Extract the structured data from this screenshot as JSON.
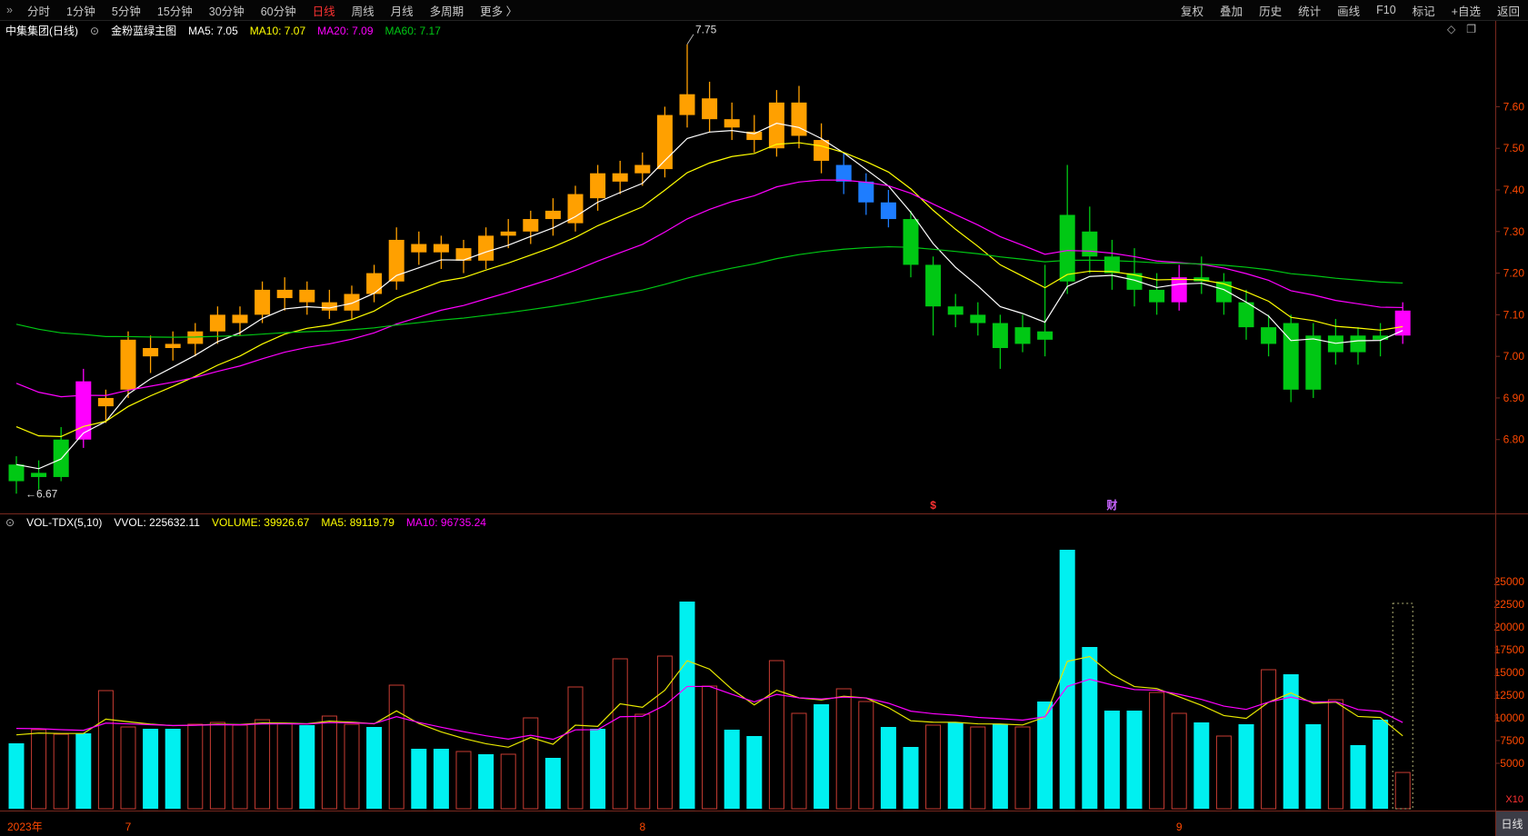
{
  "topbar": {
    "menu_icon": "»",
    "left_items": [
      {
        "label": "分时",
        "active": false
      },
      {
        "label": "1分钟",
        "active": false
      },
      {
        "label": "5分钟",
        "active": false
      },
      {
        "label": "15分钟",
        "active": false
      },
      {
        "label": "30分钟",
        "active": false
      },
      {
        "label": "60分钟",
        "active": false
      },
      {
        "label": "日线",
        "active": true
      },
      {
        "label": "周线",
        "active": false
      },
      {
        "label": "月线",
        "active": false
      },
      {
        "label": "多周期",
        "active": false
      },
      {
        "label": "更多 〉",
        "active": false
      }
    ],
    "right_items": [
      "复权",
      "叠加",
      "历史",
      "统计",
      "画线",
      "F10",
      "标记",
      "+自选",
      "返回"
    ]
  },
  "main_pane": {
    "symbol": "中集集团(日线)",
    "indicator_toggle_icon": "⊙",
    "indicator_name": "金粉蓝绿主图",
    "ma_labels": [
      {
        "text": "MA5: 7.05",
        "color": "#ffffff"
      },
      {
        "text": "MA10: 7.07",
        "color": "#ffff00"
      },
      {
        "text": "MA20: 7.09",
        "color": "#ff00ff"
      },
      {
        "text": "MA60: 7.17",
        "color": "#00c814"
      }
    ],
    "corner_icons": [
      "◇",
      "❐"
    ],
    "event_markers": [
      {
        "label": "$",
        "color": "#ff3232",
        "index": 41
      },
      {
        "label": "财",
        "color": "#c864ff",
        "index": 49
      }
    ]
  },
  "vol_pane": {
    "toggle_icon": "⊙",
    "title": "VOL-TDX(5,10)",
    "vvol": "VVOL: 225632.11",
    "volume": "VOLUME: 39926.67",
    "ma5": "MA5: 89119.79",
    "ma10": "MA10: 96735.24"
  },
  "axes": {
    "price_labels": [
      "7.60",
      "7.50",
      "7.40",
      "7.30",
      "7.20",
      "7.10",
      "7.00",
      "6.90",
      "6.80"
    ],
    "volume_labels": [
      "25000",
      "22500",
      "20000",
      "17500",
      "15000",
      "12500",
      "10000",
      "7500",
      "5000"
    ],
    "volume_unit": "X10",
    "date_labels": [
      {
        "label": "2023年",
        "index": 0
      },
      {
        "label": "7",
        "index": 5
      },
      {
        "label": "8",
        "index": 28
      },
      {
        "label": "9",
        "index": 52
      }
    ],
    "period_label": "日线"
  },
  "palette": {
    "background": "#000000",
    "gold": "#ffa000",
    "pink": "#ff00ff",
    "blue": "#1e7dff",
    "green": "#00c814",
    "vol_down_solid": "#00f0f0",
    "vol_up_hollow": "#c83c32",
    "axis_text": "#ff4800",
    "frame": "#78281e",
    "active_tab": "#ff3232"
  },
  "chart_data": {
    "type": "candlestick",
    "title": "中集集团 日线",
    "price_range": {
      "min": 6.64,
      "max": 7.78
    },
    "volume_axis_max": 30000,
    "volume_unit_multiplier": "X10",
    "high_label": {
      "value": 7.75,
      "candle_index": 30
    },
    "low_label": {
      "value": 6.67,
      "candle_index": 0
    },
    "candles": [
      [
        6.74,
        6.76,
        6.67,
        6.7,
        "green"
      ],
      [
        6.72,
        6.75,
        6.68,
        6.71,
        "green"
      ],
      [
        6.71,
        6.83,
        6.7,
        6.8,
        "green"
      ],
      [
        6.8,
        6.97,
        6.78,
        6.94,
        "pink"
      ],
      [
        6.88,
        6.92,
        6.84,
        6.9,
        "gold"
      ],
      [
        6.92,
        7.06,
        6.9,
        7.04,
        "gold"
      ],
      [
        7.0,
        7.05,
        6.96,
        7.02,
        "gold"
      ],
      [
        7.02,
        7.06,
        6.99,
        7.03,
        "gold"
      ],
      [
        7.03,
        7.08,
        7.0,
        7.06,
        "gold"
      ],
      [
        7.06,
        7.12,
        7.03,
        7.1,
        "gold"
      ],
      [
        7.08,
        7.12,
        7.05,
        7.1,
        "gold"
      ],
      [
        7.1,
        7.18,
        7.08,
        7.16,
        "gold"
      ],
      [
        7.14,
        7.19,
        7.11,
        7.16,
        "gold"
      ],
      [
        7.16,
        7.18,
        7.1,
        7.13,
        "gold"
      ],
      [
        7.13,
        7.16,
        7.09,
        7.11,
        "gold"
      ],
      [
        7.11,
        7.17,
        7.09,
        7.15,
        "gold"
      ],
      [
        7.15,
        7.22,
        7.13,
        7.2,
        "gold"
      ],
      [
        7.18,
        7.31,
        7.16,
        7.28,
        "gold"
      ],
      [
        7.27,
        7.3,
        7.22,
        7.25,
        "gold"
      ],
      [
        7.25,
        7.29,
        7.21,
        7.27,
        "gold"
      ],
      [
        7.26,
        7.28,
        7.2,
        7.23,
        "gold"
      ],
      [
        7.23,
        7.31,
        7.21,
        7.29,
        "gold"
      ],
      [
        7.29,
        7.33,
        7.26,
        7.3,
        "gold"
      ],
      [
        7.3,
        7.35,
        7.27,
        7.33,
        "gold"
      ],
      [
        7.33,
        7.38,
        7.29,
        7.35,
        "gold"
      ],
      [
        7.32,
        7.41,
        7.3,
        7.39,
        "gold"
      ],
      [
        7.38,
        7.46,
        7.35,
        7.44,
        "gold"
      ],
      [
        7.42,
        7.47,
        7.39,
        7.44,
        "gold"
      ],
      [
        7.44,
        7.49,
        7.41,
        7.46,
        "gold"
      ],
      [
        7.45,
        7.6,
        7.43,
        7.58,
        "gold"
      ],
      [
        7.58,
        7.75,
        7.55,
        7.63,
        "gold"
      ],
      [
        7.62,
        7.66,
        7.54,
        7.57,
        "gold"
      ],
      [
        7.57,
        7.61,
        7.52,
        7.55,
        "gold"
      ],
      [
        7.54,
        7.58,
        7.49,
        7.52,
        "gold"
      ],
      [
        7.5,
        7.64,
        7.48,
        7.61,
        "gold"
      ],
      [
        7.61,
        7.65,
        7.5,
        7.53,
        "gold"
      ],
      [
        7.52,
        7.56,
        7.44,
        7.47,
        "gold"
      ],
      [
        7.46,
        7.49,
        7.39,
        7.42,
        "blue"
      ],
      [
        7.42,
        7.44,
        7.34,
        7.37,
        "blue"
      ],
      [
        7.37,
        7.4,
        7.31,
        7.33,
        "blue"
      ],
      [
        7.33,
        7.35,
        7.19,
        7.22,
        "green"
      ],
      [
        7.22,
        7.24,
        7.05,
        7.12,
        "green"
      ],
      [
        7.12,
        7.15,
        7.07,
        7.1,
        "green"
      ],
      [
        7.1,
        7.13,
        7.05,
        7.08,
        "green"
      ],
      [
        7.08,
        7.1,
        6.97,
        7.02,
        "green"
      ],
      [
        7.03,
        7.1,
        7.01,
        7.07,
        "green"
      ],
      [
        7.06,
        7.22,
        7.0,
        7.04,
        "green"
      ],
      [
        7.18,
        7.46,
        7.15,
        7.34,
        "green"
      ],
      [
        7.3,
        7.36,
        7.2,
        7.24,
        "green"
      ],
      [
        7.24,
        7.28,
        7.16,
        7.2,
        "green"
      ],
      [
        7.2,
        7.26,
        7.12,
        7.16,
        "green"
      ],
      [
        7.16,
        7.2,
        7.1,
        7.13,
        "green"
      ],
      [
        7.13,
        7.22,
        7.11,
        7.19,
        "pink"
      ],
      [
        7.19,
        7.24,
        7.15,
        7.18,
        "green"
      ],
      [
        7.18,
        7.2,
        7.1,
        7.13,
        "green"
      ],
      [
        7.13,
        7.16,
        7.04,
        7.07,
        "green"
      ],
      [
        7.07,
        7.1,
        7.0,
        7.03,
        "green"
      ],
      [
        7.08,
        7.1,
        6.89,
        6.92,
        "green"
      ],
      [
        6.92,
        7.08,
        6.9,
        7.05,
        "green"
      ],
      [
        7.05,
        7.09,
        6.98,
        7.01,
        "green"
      ],
      [
        7.01,
        7.07,
        6.98,
        7.05,
        "green"
      ],
      [
        7.05,
        7.08,
        7.0,
        7.04,
        "green"
      ],
      [
        7.05,
        7.13,
        7.03,
        7.11,
        "pink"
      ]
    ],
    "volumes": [
      [
        7200,
        "c"
      ],
      [
        8700,
        "r"
      ],
      [
        8200,
        "r"
      ],
      [
        8300,
        "c"
      ],
      [
        13000,
        "r"
      ],
      [
        9000,
        "r"
      ],
      [
        8800,
        "c"
      ],
      [
        8800,
        "c"
      ],
      [
        9300,
        "r"
      ],
      [
        9500,
        "r"
      ],
      [
        9200,
        "r"
      ],
      [
        9800,
        "r"
      ],
      [
        9400,
        "r"
      ],
      [
        9200,
        "c"
      ],
      [
        10200,
        "r"
      ],
      [
        9300,
        "r"
      ],
      [
        9000,
        "c"
      ],
      [
        13600,
        "r"
      ],
      [
        6600,
        "c"
      ],
      [
        6600,
        "c"
      ],
      [
        6300,
        "r"
      ],
      [
        6000,
        "c"
      ],
      [
        6000,
        "r"
      ],
      [
        10000,
        "r"
      ],
      [
        5600,
        "c"
      ],
      [
        13400,
        "r"
      ],
      [
        8800,
        "c"
      ],
      [
        16500,
        "r"
      ],
      [
        10400,
        "r"
      ],
      [
        16800,
        "r"
      ],
      [
        22800,
        "c"
      ],
      [
        13500,
        "r"
      ],
      [
        8700,
        "c"
      ],
      [
        8000,
        "c"
      ],
      [
        16300,
        "r"
      ],
      [
        10500,
        "r"
      ],
      [
        11500,
        "c"
      ],
      [
        13200,
        "r"
      ],
      [
        11800,
        "r"
      ],
      [
        9000,
        "c"
      ],
      [
        6800,
        "c"
      ],
      [
        9200,
        "r"
      ],
      [
        9500,
        "c"
      ],
      [
        9000,
        "r"
      ],
      [
        9300,
        "c"
      ],
      [
        9000,
        "r"
      ],
      [
        11800,
        "c"
      ],
      [
        28500,
        "c"
      ],
      [
        17800,
        "c"
      ],
      [
        10800,
        "c"
      ],
      [
        10800,
        "c"
      ],
      [
        12800,
        "r"
      ],
      [
        10500,
        "r"
      ],
      [
        9500,
        "c"
      ],
      [
        8000,
        "r"
      ],
      [
        9300,
        "c"
      ],
      [
        15300,
        "r"
      ],
      [
        14800,
        "c"
      ],
      [
        9300,
        "c"
      ],
      [
        12000,
        "r"
      ],
      [
        7000,
        "c"
      ],
      [
        9800,
        "c"
      ],
      [
        3993,
        "r"
      ]
    ],
    "ma_lines": [
      {
        "name": "MA5",
        "window": 5,
        "seed": 6.76,
        "color": "#ffffff"
      },
      {
        "name": "MA10",
        "window": 10,
        "seed": 6.86,
        "color": "#ffff00"
      },
      {
        "name": "MA20",
        "window": 20,
        "seed": 6.96,
        "color": "#ff00ff"
      },
      {
        "name": "MA60",
        "window": 60,
        "seed": 7.09,
        "color": "#00c814"
      }
    ],
    "vol_ma_lines": [
      {
        "name": "MA5",
        "window": 5,
        "seed": 8600,
        "color": "#e6e600"
      },
      {
        "name": "MA10",
        "window": 10,
        "seed": 9200,
        "color": "#ff00ff"
      }
    ],
    "cursor_box": {
      "candle_index": 62,
      "top_value": 22600,
      "color": "#b4b478"
    }
  }
}
